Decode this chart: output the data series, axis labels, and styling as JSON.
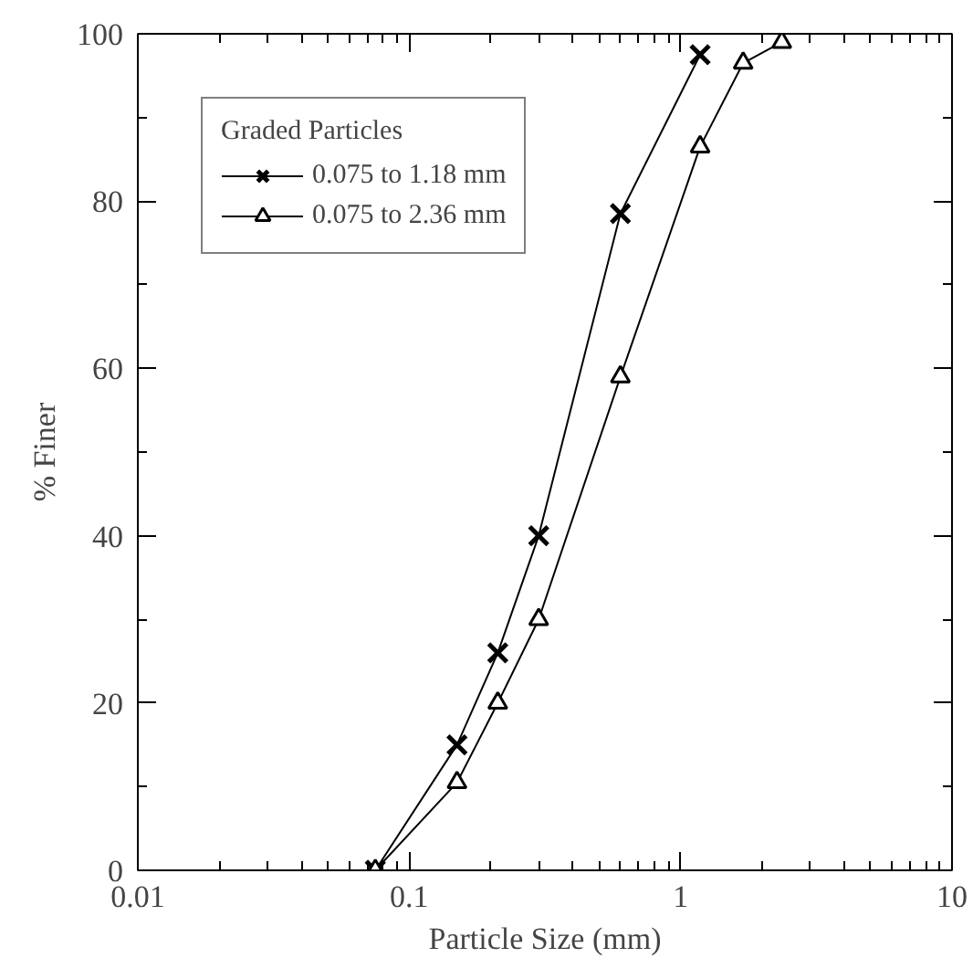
{
  "chart_data": {
    "type": "line",
    "xlabel": "Particle Size (mm)",
    "ylabel": "% Finer",
    "legend_title": "Graded Particles",
    "legend": "top left",
    "grid": false,
    "log": "x",
    "xlim": [
      0.01,
      10
    ],
    "xticks": [
      0.01,
      0.1,
      1,
      10
    ],
    "ylim": [
      0,
      100
    ],
    "yticks": [
      0,
      20,
      40,
      60,
      80,
      100
    ],
    "series": [
      {
        "name": "0.075 to 1.18 mm",
        "color": "#000000",
        "marker": "cross",
        "x": [
          0.075,
          0.15,
          0.212,
          0.3,
          0.6,
          1.18
        ],
        "values": [
          0,
          15,
          26,
          40,
          78.5,
          97.5
        ]
      },
      {
        "name": "0.075 to 2.36 mm",
        "color": "#000000",
        "marker": "triangle",
        "x": [
          0.075,
          0.15,
          0.212,
          0.3,
          0.6,
          1.18,
          1.7,
          2.36
        ],
        "values": [
          0,
          10.5,
          20,
          30,
          59,
          86.5,
          96.5,
          99
        ]
      }
    ]
  }
}
